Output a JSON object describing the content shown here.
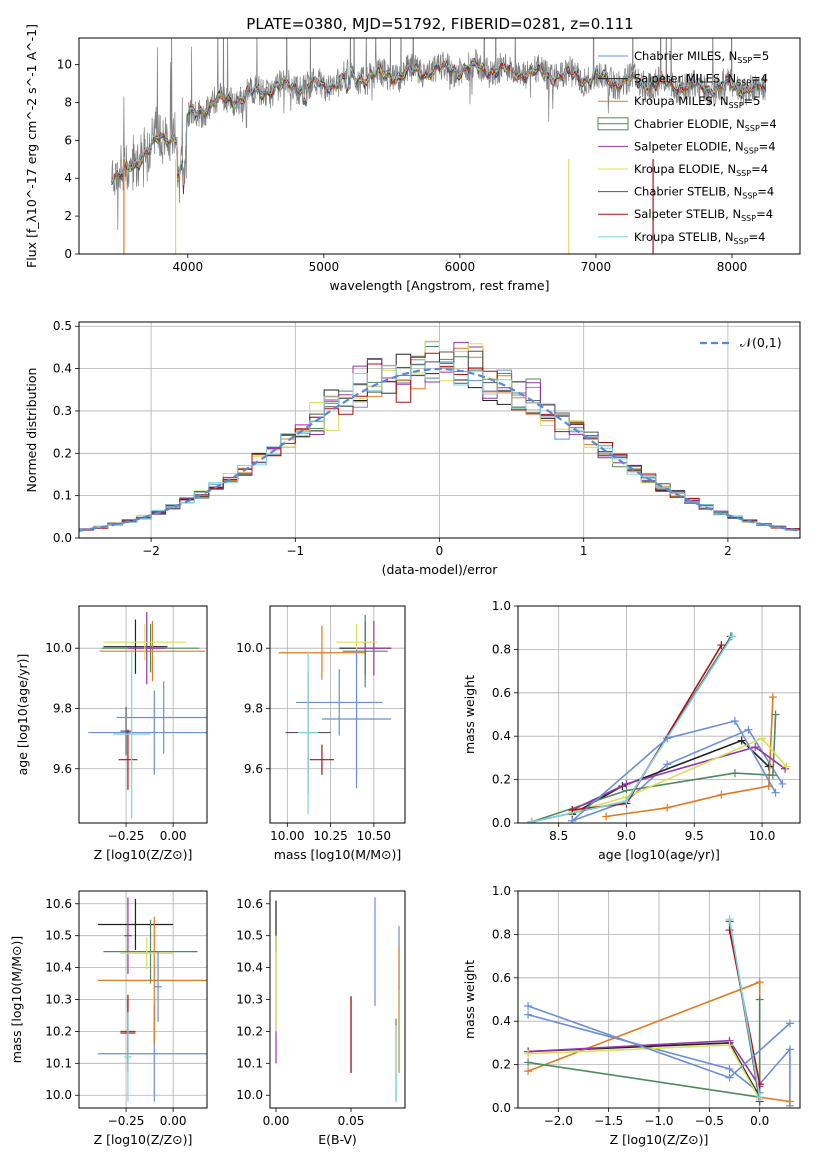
{
  "figure_title": "PLATE=0380, MJD=51792, FIBERID=0281, z=0.111",
  "series_colors": [
    "#6a8fd8",
    "#222222",
    "#e07b22",
    "#4f8a5f",
    "#9933aa",
    "#d8e05a",
    "#555555",
    "#aa1111",
    "#7fd3dc"
  ],
  "chart_data": [
    {
      "type": "line",
      "title": "PLATE=0380, MJD=51792, FIBERID=0281, z=0.111",
      "xlabel": "wavelength [Angstrom, rest frame]",
      "ylabel": "Flux [f_λ10^-17 erg cm^-2 s^-1 A^-1]",
      "xlim": [
        3200,
        8500
      ],
      "ylim": [
        0,
        11.4
      ],
      "xticks": [
        4000,
        5000,
        6000,
        7000,
        8000
      ],
      "yticks": [
        0,
        2,
        4,
        6,
        8,
        10
      ],
      "legend_position": "right",
      "legend": [
        "Chabrier MILES, N_SSP=5",
        "Salpeter MILES, N_SSP=4",
        "Kroupa MILES, N_SSP=5",
        "Chabrier ELODIE, N_SSP=4",
        "Salpeter ELODIE, N_SSP=4",
        "Kroupa ELODIE, N_SSP=4",
        "Chabrier STELIB, N_SSP=4",
        "Salpeter STELIB, N_SSP=4",
        "Kroupa STELIB, N_SSP=4"
      ],
      "spectrum_points": [
        [
          3440,
          4.2
        ],
        [
          3500,
          4.1
        ],
        [
          3600,
          4.6
        ],
        [
          3700,
          5.6
        ],
        [
          3800,
          6.0
        ],
        [
          3900,
          6.2
        ],
        [
          4000,
          7.2
        ],
        [
          4200,
          8.0
        ],
        [
          4400,
          8.3
        ],
        [
          4600,
          8.7
        ],
        [
          4800,
          8.9
        ],
        [
          5000,
          8.9
        ],
        [
          5200,
          9.3
        ],
        [
          5400,
          9.4
        ],
        [
          5600,
          9.5
        ],
        [
          5800,
          9.7
        ],
        [
          6000,
          9.8
        ],
        [
          6200,
          9.8
        ],
        [
          6400,
          9.6
        ],
        [
          6600,
          9.5
        ],
        [
          6800,
          9.4
        ],
        [
          7000,
          9.3
        ],
        [
          7200,
          9.1
        ],
        [
          7400,
          9.0
        ],
        [
          7600,
          8.9
        ],
        [
          7800,
          8.8
        ],
        [
          8000,
          8.8
        ],
        [
          8250,
          8.7
        ]
      ]
    },
    {
      "type": "histogram",
      "xlabel": "(data-model)/error",
      "ylabel": "Normed distribution",
      "xlim": [
        -2.5,
        2.5
      ],
      "ylim": [
        0,
        0.51
      ],
      "xticks": [
        -2,
        -1,
        0,
        1,
        2
      ],
      "yticks": [
        0.0,
        0.1,
        0.2,
        0.3,
        0.4,
        0.5
      ],
      "grid": true,
      "legend": [
        "𝒩(0,1)"
      ],
      "legend_position": "top-right",
      "curve": "normal(0,1)"
    },
    {
      "type": "scatter",
      "xlabel": "Z [log10(Z/Z⊙)]",
      "ylabel": "age  [log10(age/yr)]",
      "xlim": [
        -0.5,
        0.18
      ],
      "ylim": [
        9.42,
        10.14
      ],
      "xticks": [
        -0.25,
        0.0
      ],
      "yticks": [
        9.6,
        9.8,
        10.0
      ],
      "grid": true,
      "points": [
        {
          "x": -0.1,
          "y": 9.72,
          "xerr": 0.35,
          "yerr": 0.14
        },
        {
          "x": -0.2,
          "y": 10.005,
          "xerr": 0.17,
          "yerr": 0.09
        },
        {
          "x": -0.11,
          "y": 9.99,
          "xerr": 0.28,
          "yerr": 0.1
        },
        {
          "x": -0.12,
          "y": 10.0,
          "xerr": 0.26,
          "yerr": 0.08
        },
        {
          "x": -0.14,
          "y": 10.0,
          "xerr": 0.1,
          "yerr": 0.12
        },
        {
          "x": -0.15,
          "y": 10.02,
          "xerr": 0.22,
          "yerr": 0.06
        },
        {
          "x": -0.25,
          "y": 9.725,
          "xerr": 0.03,
          "yerr": 0.08
        },
        {
          "x": -0.24,
          "y": 9.63,
          "xerr": 0.05,
          "yerr": 0.1
        },
        {
          "x": -0.22,
          "y": 9.715,
          "xerr": 0.1,
          "yerr": 0.28
        },
        {
          "x": -0.05,
          "y": 9.77,
          "xerr": 0.25,
          "yerr": 0.12
        }
      ]
    },
    {
      "type": "scatter",
      "xlabel": "mass [log10(M/M⊙)]",
      "ylabel": "",
      "xlim": [
        9.9,
        10.68
      ],
      "ylim": [
        9.42,
        10.14
      ],
      "xticks": [
        10.0,
        10.25,
        10.5
      ],
      "yticks": [
        9.6,
        9.8,
        10.0
      ],
      "grid": true,
      "points": [
        {
          "x": 10.3,
          "y": 9.82,
          "xerr": 0.25,
          "yerr": 0.11
        },
        {
          "x": 10.45,
          "y": 10.0,
          "xerr": 0.15,
          "yerr": 0.09
        },
        {
          "x": 10.2,
          "y": 9.985,
          "xerr": 0.25,
          "yerr": 0.09
        },
        {
          "x": 10.45,
          "y": 9.99,
          "xerr": 0.13,
          "yerr": 0.12
        },
        {
          "x": 10.5,
          "y": 10.0,
          "xerr": 0.1,
          "yerr": 0.09
        },
        {
          "x": 10.4,
          "y": 10.02,
          "xerr": 0.12,
          "yerr": 0.06
        },
        {
          "x": 10.12,
          "y": 9.72,
          "xerr": 0.13,
          "yerr": 0.2
        },
        {
          "x": 10.2,
          "y": 9.63,
          "xerr": 0.07,
          "yerr": 0.05
        },
        {
          "x": 10.12,
          "y": 9.72,
          "xerr": 0.06,
          "yerr": 0.27
        },
        {
          "x": 10.4,
          "y": 9.765,
          "xerr": 0.2,
          "yerr": 0.23
        }
      ]
    },
    {
      "type": "line",
      "xlabel": "age  [log10(age/yr)]",
      "ylabel": "mass weight",
      "xlim": [
        8.2,
        10.28
      ],
      "ylim": [
        0,
        1.0
      ],
      "xticks": [
        8.5,
        9.0,
        9.5,
        10.0
      ],
      "yticks": [
        0.0,
        0.2,
        0.4,
        0.6,
        0.8,
        1.0
      ],
      "grid": true,
      "series": [
        {
          "x": [
            8.6,
            9.0,
            9.3,
            9.9,
            10.15
          ],
          "y": [
            0.01,
            0.1,
            0.27,
            0.43,
            0.18
          ]
        },
        {
          "x": [
            8.6,
            8.97,
            9.85,
            10.05
          ],
          "y": [
            0.04,
            0.17,
            0.38,
            0.26
          ]
        },
        {
          "x": [
            8.85,
            9.3,
            9.7,
            10.05,
            10.08
          ],
          "y": [
            0.03,
            0.07,
            0.13,
            0.17,
            0.58
          ]
        },
        {
          "x": [
            8.3,
            9.0,
            9.8,
            10.08,
            10.1
          ],
          "y": [
            0.005,
            0.15,
            0.23,
            0.22,
            0.5
          ]
        },
        {
          "x": [
            8.6,
            9.0,
            9.95,
            10.17
          ],
          "y": [
            0.06,
            0.18,
            0.35,
            0.25
          ]
        },
        {
          "x": [
            8.6,
            9.0,
            10.0,
            10.18
          ],
          "y": [
            0.05,
            0.12,
            0.39,
            0.26
          ]
        },
        {
          "x": [
            8.3,
            9.0,
            9.77
          ],
          "y": [
            0.005,
            0.1,
            0.86
          ]
        },
        {
          "x": [
            8.6,
            9.0,
            9.7
          ],
          "y": [
            0.06,
            0.09,
            0.82
          ]
        },
        {
          "x": [
            8.3,
            9.0,
            9.78
          ],
          "y": [
            0.005,
            0.1,
            0.86
          ]
        },
        {
          "x": [
            8.6,
            9.3,
            9.8,
            10.1
          ],
          "y": [
            0.01,
            0.39,
            0.47,
            0.14
          ]
        }
      ]
    },
    {
      "type": "scatter",
      "xlabel": "Z [log10(Z/Z⊙)]",
      "ylabel": "mass [log10(M/M⊙)]",
      "xlim": [
        -0.5,
        0.18
      ],
      "ylim": [
        9.96,
        10.64
      ],
      "xticks": [
        -0.25,
        0.0
      ],
      "yticks": [
        10.0,
        10.1,
        10.2,
        10.3,
        10.4,
        10.5,
        10.6
      ],
      "grid": true,
      "points": [
        {
          "x": -0.1,
          "y": 10.13,
          "xerr": 0.3,
          "yerr": 0.15
        },
        {
          "x": -0.2,
          "y": 10.535,
          "xerr": 0.2,
          "yerr": 0.08
        },
        {
          "x": -0.1,
          "y": 10.36,
          "xerr": 0.3,
          "yerr": 0.2
        },
        {
          "x": -0.12,
          "y": 10.45,
          "xerr": 0.25,
          "yerr": 0.1
        },
        {
          "x": -0.24,
          "y": 10.5,
          "xerr": 0.02,
          "yerr": 0.12
        },
        {
          "x": -0.14,
          "y": 10.445,
          "xerr": 0.14,
          "yerr": 0.05
        },
        {
          "x": -0.24,
          "y": 10.2,
          "xerr": 0.04,
          "yerr": 0.1
        },
        {
          "x": -0.24,
          "y": 10.195,
          "xerr": 0.04,
          "yerr": 0.12
        },
        {
          "x": -0.24,
          "y": 10.12,
          "xerr": 0.02,
          "yerr": 0.14
        },
        {
          "x": -0.08,
          "y": 10.34,
          "xerr": 0.02,
          "yerr": 0.11
        }
      ]
    },
    {
      "type": "scatter",
      "xlabel": "E(B-V)",
      "ylabel": "",
      "xlim": [
        -0.004,
        0.086
      ],
      "ylim": [
        9.96,
        10.64
      ],
      "xticks": [
        0.0,
        0.05
      ],
      "yticks": [
        10.0,
        10.1,
        10.2,
        10.3,
        10.4,
        10.5,
        10.6
      ],
      "points": [
        {
          "x": 0.082,
          "y": 10.43,
          "yerr": 0.1
        },
        {
          "x": 0.0,
          "y": 10.53,
          "yerr": 0.08
        },
        {
          "x": 0.082,
          "y": 10.27,
          "yerr": 0.2
        },
        {
          "x": 0.08,
          "y": 10.11,
          "yerr": 0.13
        },
        {
          "x": 0.0,
          "y": 10.3,
          "yerr": 0.2
        },
        {
          "x": 0.0,
          "y": 10.35,
          "yerr": 0.15
        },
        {
          "x": 0.05,
          "y": 10.19,
          "yerr": 0.12
        },
        {
          "x": 0.05,
          "y": 10.19,
          "yerr": 0.12
        },
        {
          "x": 0.08,
          "y": 10.1,
          "yerr": 0.12
        },
        {
          "x": 0.066,
          "y": 10.45,
          "yerr": 0.17
        }
      ]
    },
    {
      "type": "line",
      "xlabel": "Z [log10(Z/Z⊙)]",
      "ylabel": "mass weight",
      "xlim": [
        -2.4,
        0.4
      ],
      "ylim": [
        0,
        1.0
      ],
      "xticks": [
        -2.0,
        -1.5,
        -1.0,
        -0.5,
        0.0
      ],
      "yticks": [
        0.0,
        0.2,
        0.4,
        0.6,
        0.8,
        1.0
      ],
      "grid": true,
      "series": [
        {
          "x": [
            -2.3,
            -0.3,
            0.0,
            0.0,
            0.3,
            0.3
          ],
          "y": [
            0.43,
            0.18,
            0.07,
            0.11,
            0.27,
            0.01
          ]
        },
        {
          "x": [
            -2.3,
            -0.3,
            0.0
          ],
          "y": [
            0.26,
            0.3,
            0.05
          ]
        },
        {
          "x": [
            -2.3,
            0.0,
            0.0,
            0.3
          ],
          "y": [
            0.17,
            0.58,
            0.05,
            0.03
          ]
        },
        {
          "x": [
            -2.3,
            0.0,
            0.0
          ],
          "y": [
            0.21,
            0.05,
            0.5
          ]
        },
        {
          "x": [
            -2.3,
            -0.3,
            0.0
          ],
          "y": [
            0.26,
            0.31,
            0.1
          ]
        },
        {
          "x": [
            -2.3,
            -0.3,
            0.0
          ],
          "y": [
            0.25,
            0.29,
            0.04
          ]
        },
        {
          "x": [
            -0.3,
            0.0
          ],
          "y": [
            0.86,
            0.03
          ]
        },
        {
          "x": [
            -0.3,
            0.0
          ],
          "y": [
            0.82,
            0.11
          ]
        },
        {
          "x": [
            -0.3,
            0.0
          ],
          "y": [
            0.87,
            0.05
          ]
        },
        {
          "x": [
            -2.3,
            -0.3,
            0.3
          ],
          "y": [
            0.47,
            0.14,
            0.39
          ]
        }
      ]
    }
  ]
}
